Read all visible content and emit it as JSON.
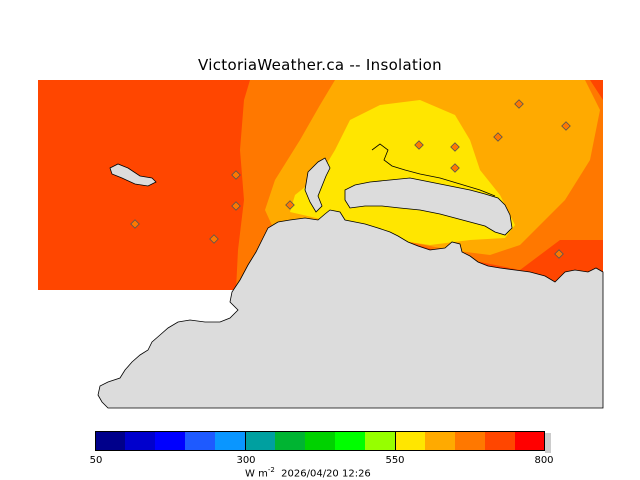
{
  "title": "VictoriaWeather.ca  --  Insolation",
  "colorbar": {
    "colors": [
      "#00008b",
      "#0000cd",
      "#0000ff",
      "#1e5aff",
      "#0a96ff",
      "#00a0a0",
      "#00b432",
      "#00d200",
      "#00ff00",
      "#96ff00",
      "#ffe600",
      "#ffaa00",
      "#ff7800",
      "#ff4600",
      "#ff0000"
    ],
    "ticks": [
      "50",
      "300",
      "550",
      "800"
    ]
  },
  "caption": {
    "unit_prefix": "W m",
    "unit_exp": "-2",
    "timestamp": "2026/04/20 12:26"
  },
  "map_colors": {
    "land": "#dcdcdc",
    "zone_high": "#ff4600",
    "zone_mid": "#ff7800",
    "zone_low": "#ffaa00",
    "zone_lowest": "#ffe600"
  }
}
